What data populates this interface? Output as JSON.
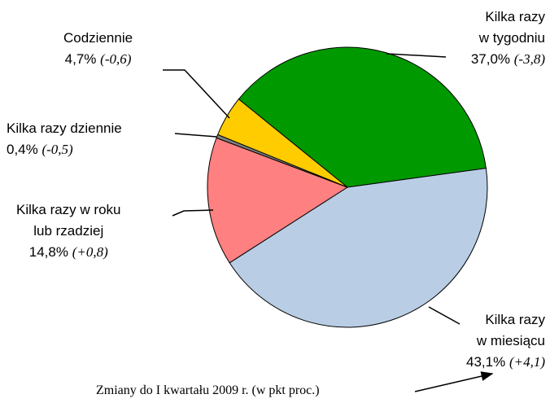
{
  "chart_data": {
    "type": "pie",
    "categories": [
      "Kilka razy\nw tygodniu",
      "Kilka razy\nw miesiącu",
      "Kilka razy w roku\nlub rzadziej",
      "Kilka razy dziennie",
      "Codziennie"
    ],
    "values": [
      37.0,
      43.1,
      14.8,
      0.4,
      4.7
    ],
    "value_labels": [
      "37,0%",
      "43,1%",
      "14,8%",
      "0,4%",
      "4,7%"
    ],
    "changes": [
      -3.8,
      4.1,
      0.8,
      -0.5,
      -0.6
    ],
    "change_labels": [
      "(-3,8)",
      "(+4,1)",
      "(+0,8)",
      "(-0,5)",
      "(-0,6)"
    ],
    "colors": [
      "#009900",
      "#b9cde5",
      "#ff8080",
      "#7f7f7f",
      "#ffcc00"
    ],
    "footnote": "Zmiany do I kwartału 2009 r. (w pkt proc.)"
  }
}
